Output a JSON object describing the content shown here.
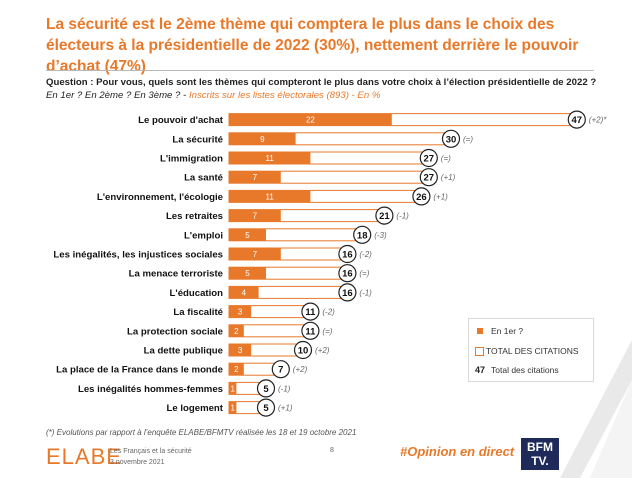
{
  "headline": "La sécurité est le 2ème thème qui comptera le plus dans le choix des électeurs à la présidentielle de 2022 (30%), nettement derrière le pouvoir d’achat (47%)",
  "question": {
    "line1": "Question : Pour vous, quels sont les thèmes qui compteront le plus dans votre choix à l’élection présidentielle de 2022 ?",
    "line2": "En 1er ? En 2ème ? En 3ème ? -",
    "line2_orange": "Inscrits sur les listes électorales (893) - En %"
  },
  "chart_data": {
    "type": "bar",
    "categories": [
      "Le pouvoir d'achat",
      "La sécurité",
      "L'immigration",
      "La santé",
      "L'environnement, l'écologie",
      "Les retraites",
      "L'emploi",
      "Les inégalités, les injustices sociales",
      "La menace terroriste",
      "L'éducation",
      "La fiscalité",
      "La protection sociale",
      "La dette publique",
      "La place de la France dans le monde",
      "Les inégalités hommes-femmes",
      "Le logement"
    ],
    "series": [
      {
        "name": "En 1er ?",
        "values": [
          22,
          9,
          11,
          7,
          11,
          7,
          5,
          7,
          5,
          4,
          3,
          2,
          3,
          2,
          1,
          1
        ]
      },
      {
        "name": "TOTAL DES CITATIONS",
        "values": [
          47,
          30,
          27,
          27,
          26,
          21,
          18,
          16,
          16,
          16,
          11,
          11,
          10,
          7,
          5,
          5
        ]
      }
    ],
    "evolutions": [
      "(+2)*",
      "(=)",
      "(=)",
      "(+1)",
      "(+1)",
      "(-1)",
      "(-3)",
      "(-2)",
      "(=)",
      "(-1)",
      "(-2)",
      "(=)",
      "(+2)",
      "(+2)",
      "(-1)",
      "(+1)"
    ],
    "legend": {
      "first": "En 1er ?",
      "total": "TOTAL DES CITATIONS",
      "bubble_value": "47",
      "bubble_label": "Total des citations"
    },
    "legend_position": "right",
    "colors": {
      "first": "#e8792a",
      "total_border": "#e8792a",
      "total_fill": "#ffffff"
    }
  },
  "footnote": "(*) Evolutions par rapport à l’enquête ELABE/BFMTV réalisée les 18 et 19 octobre 2021",
  "footer": {
    "logo": "ELABE",
    "subtitle": "Les Français et la sécurité",
    "date": "3 novembre 2021",
    "page": "8",
    "hashtag": "#Opinion en direct",
    "bfm_top": "BFM",
    "bfm_bottom": "TV."
  }
}
